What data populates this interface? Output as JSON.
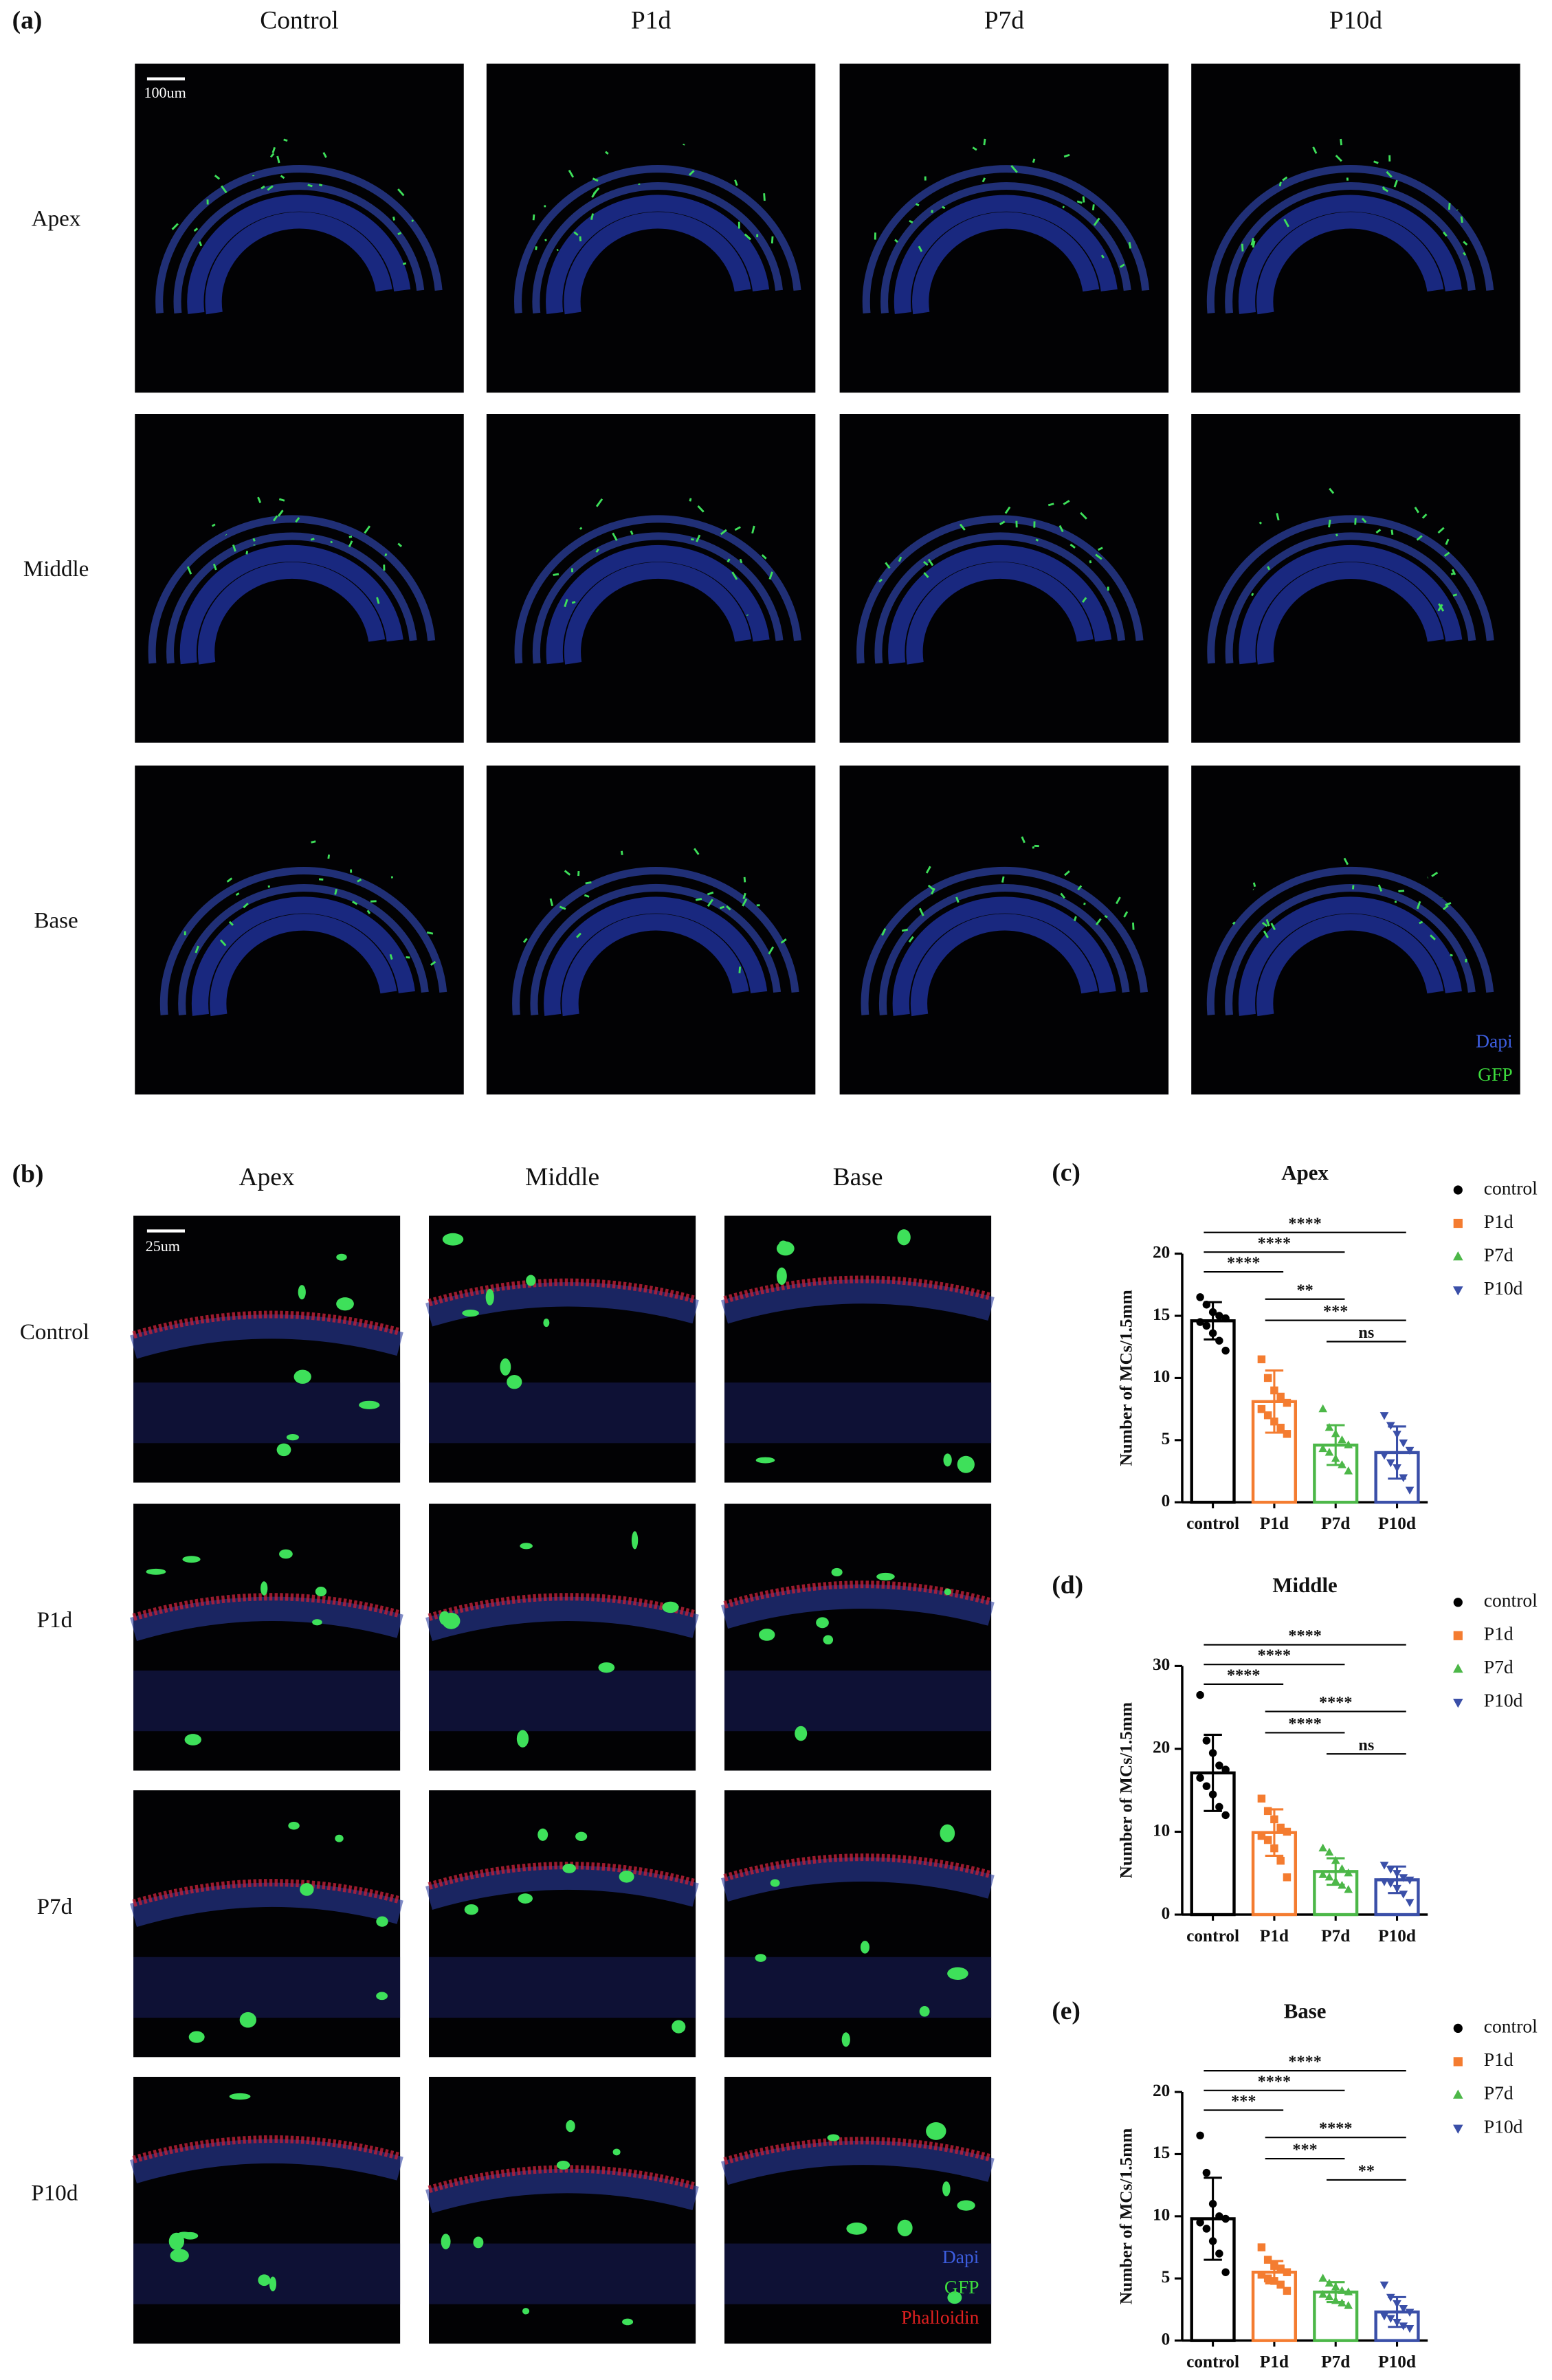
{
  "figure": {
    "panel_a": {
      "label": "(a)",
      "columns": [
        "Control",
        "P1d",
        "P7d",
        "P10d"
      ],
      "rows": [
        "Apex",
        "Middle",
        "Base"
      ],
      "scale_bar": "100um",
      "legend": [
        "Dapi",
        "GFP"
      ]
    },
    "panel_b": {
      "label": "(b)",
      "columns": [
        "Apex",
        "Middle",
        "Base"
      ],
      "rows": [
        "Control",
        "P1d",
        "P7d",
        "P10d"
      ],
      "scale_bar": "25um",
      "legend": [
        "Dapi",
        "GFP",
        "Phalloidin"
      ]
    }
  },
  "chart_data": [
    {
      "type": "bar",
      "label": "(c)",
      "title": "Apex",
      "ylabel": "Number of MCs/1.5mm",
      "categories": [
        "control",
        "P1d",
        "P7d",
        "P10d"
      ],
      "values": [
        14.6,
        8.1,
        4.6,
        4.0
      ],
      "errors": [
        1.5,
        2.5,
        1.6,
        2.1
      ],
      "points": [
        [
          16.5,
          15.9,
          15.3,
          15.0,
          14.8,
          14.5,
          14.2,
          13.6,
          13.0,
          12.2
        ],
        [
          11.5,
          10.0,
          9.0,
          8.5,
          8.0,
          7.5,
          7.0,
          6.5,
          6.0,
          5.5
        ],
        [
          7.5,
          6.0,
          5.5,
          5.0,
          4.6,
          4.3,
          4.0,
          3.5,
          3.0,
          2.5
        ],
        [
          7.0,
          6.2,
          5.5,
          4.8,
          4.2,
          3.8,
          3.2,
          2.8,
          2.0,
          1.0
        ]
      ],
      "colors": [
        "#000000",
        "#f47c30",
        "#4cb748",
        "#3a4fa8"
      ],
      "markers": [
        "circle",
        "square",
        "triangle-up",
        "triangle-down"
      ],
      "ylim": [
        0,
        20
      ],
      "yticks": [
        0,
        5,
        10,
        15,
        20
      ],
      "annotations": [
        {
          "text": "****",
          "between": [
            "control",
            "P10d"
          ]
        },
        {
          "text": "****",
          "between": [
            "control",
            "P7d"
          ]
        },
        {
          "text": "****",
          "between": [
            "control",
            "P1d"
          ]
        },
        {
          "text": "**",
          "between": [
            "P1d",
            "P7d"
          ]
        },
        {
          "text": "***",
          "between": [
            "P1d",
            "P10d"
          ]
        },
        {
          "text": "ns",
          "between": [
            "P7d",
            "P10d"
          ]
        }
      ]
    },
    {
      "type": "bar",
      "label": "(d)",
      "title": "Middle",
      "ylabel": "Number of MCs/1.5mm",
      "categories": [
        "control",
        "P1d",
        "P7d",
        "P10d"
      ],
      "values": [
        17.1,
        9.9,
        5.2,
        4.2
      ],
      "errors": [
        4.6,
        2.8,
        1.6,
        1.6
      ],
      "points": [
        [
          26.5,
          21.0,
          19.5,
          18.0,
          17.5,
          16.5,
          15.5,
          14.5,
          13.0,
          12.0
        ],
        [
          14.0,
          12.5,
          11.5,
          10.5,
          10.0,
          9.5,
          9.0,
          8.0,
          6.5,
          4.5
        ],
        [
          8.0,
          7.5,
          6.5,
          5.5,
          5.0,
          4.8,
          4.5,
          4.0,
          3.5,
          3.0
        ],
        [
          6.0,
          5.5,
          5.0,
          4.5,
          4.2,
          4.0,
          3.8,
          3.2,
          2.5,
          1.5
        ]
      ],
      "colors": [
        "#000000",
        "#f47c30",
        "#4cb748",
        "#3a4fa8"
      ],
      "markers": [
        "circle",
        "square",
        "triangle-up",
        "triangle-down"
      ],
      "ylim": [
        0,
        30
      ],
      "yticks": [
        0,
        10,
        20,
        30
      ],
      "annotations": [
        {
          "text": "****",
          "between": [
            "control",
            "P10d"
          ]
        },
        {
          "text": "****",
          "between": [
            "control",
            "P7d"
          ]
        },
        {
          "text": "****",
          "between": [
            "control",
            "P1d"
          ]
        },
        {
          "text": "****",
          "between": [
            "P1d",
            "P10d"
          ]
        },
        {
          "text": "****",
          "between": [
            "P1d",
            "P7d"
          ]
        },
        {
          "text": "ns",
          "between": [
            "P7d",
            "P10d"
          ]
        }
      ]
    },
    {
      "type": "bar",
      "label": "(e)",
      "title": "Base",
      "ylabel": "Number of MCs/1.5mm",
      "categories": [
        "control",
        "P1d",
        "P7d",
        "P10d"
      ],
      "values": [
        9.8,
        5.5,
        3.9,
        2.3
      ],
      "errors": [
        3.3,
        0.9,
        0.8,
        1.2
      ],
      "points": [
        [
          16.5,
          13.5,
          11.0,
          10.0,
          9.8,
          9.5,
          9.0,
          8.0,
          7.0,
          5.5
        ],
        [
          7.5,
          6.5,
          6.0,
          5.8,
          5.5,
          5.3,
          5.0,
          4.8,
          4.5,
          4.0
        ],
        [
          5.0,
          4.6,
          4.3,
          4.0,
          3.9,
          3.7,
          3.5,
          3.2,
          3.0,
          2.8
        ],
        [
          4.5,
          3.5,
          3.0,
          2.6,
          2.3,
          2.0,
          1.8,
          1.5,
          1.2,
          1.0
        ]
      ],
      "colors": [
        "#000000",
        "#f47c30",
        "#4cb748",
        "#3a4fa8"
      ],
      "markers": [
        "circle",
        "square",
        "triangle-up",
        "triangle-down"
      ],
      "ylim": [
        0,
        20
      ],
      "yticks": [
        0,
        5,
        10,
        15,
        20
      ],
      "annotations": [
        {
          "text": "****",
          "between": [
            "control",
            "P10d"
          ]
        },
        {
          "text": "****",
          "between": [
            "control",
            "P7d"
          ]
        },
        {
          "text": "***",
          "between": [
            "control",
            "P1d"
          ]
        },
        {
          "text": "****",
          "between": [
            "P1d",
            "P10d"
          ]
        },
        {
          "text": "***",
          "between": [
            "P1d",
            "P7d"
          ]
        },
        {
          "text": "**",
          "between": [
            "P7d",
            "P10d"
          ]
        }
      ]
    }
  ]
}
